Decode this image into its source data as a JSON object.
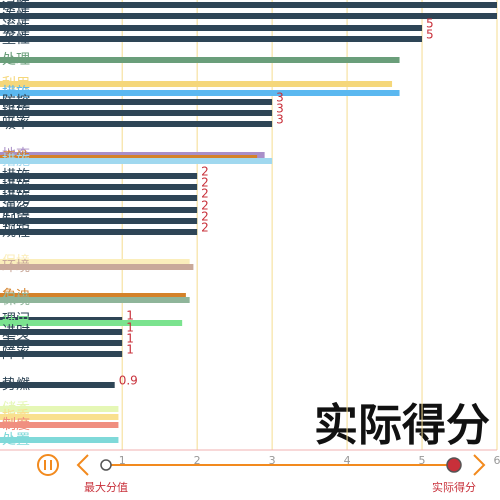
{
  "chart_data": {
    "type": "bar",
    "orientation": "horizontal",
    "categories": [
      "浸性",
      "泼性",
      "诶性",
      "垄性",
      "处理",
      "利用",
      "措施",
      "防控",
      "措施",
      "吸率",
      "地查",
      "毒性",
      "措施",
      "措施",
      "措施",
      "措施",
      "渭络",
      "制度",
      "规程",
      "保境",
      "环境",
      "象迪",
      "保境",
      "理间",
      "种用",
      "进时",
      "力余",
      "障率",
      "势燃",
      "储委",
      "指委",
      "制度",
      "处置"
    ],
    "values": [
      6,
      6,
      5,
      5,
      4.7,
      4.6,
      4.7,
      3,
      3,
      3,
      2.9,
      2.8,
      3,
      2,
      2,
      2,
      2,
      2,
      2,
      1.9,
      1.95,
      1.85,
      1.9,
      1,
      1.8,
      1,
      1,
      1,
      0.9,
      0.95,
      0.95,
      0.95,
      0.95
    ],
    "colors": [
      "#2e4556",
      "#2e4556",
      "#2e4556",
      "#2e4556",
      "#6a9e7a",
      "#f5d77a",
      "#5bb8f0",
      "#2e4556",
      "#2e4556",
      "#2e4556",
      "#a98fc9",
      "#d4822a",
      "#a0d8ef",
      "#2e4556",
      "#2e4556",
      "#2e4556",
      "#2e4556",
      "#2e4556",
      "#2e4556",
      "#fbeebb",
      "#c9a99a",
      "#d4822a",
      "#8fb59a",
      "#2e4556",
      "#7be38f",
      "#2e4556",
      "#2e4556",
      "#2e4556",
      "#2e4556",
      "#e5f7b5",
      "#f9e08f",
      "#f08f80",
      "#7fd9d9"
    ],
    "xlim": [
      -0.63,
      6
    ],
    "xticks": [
      1,
      2,
      3,
      4,
      5,
      6
    ],
    "grid": true,
    "title": "实际得分",
    "slider_min_label": "最大分值",
    "slider_max_label": "实际得分"
  }
}
